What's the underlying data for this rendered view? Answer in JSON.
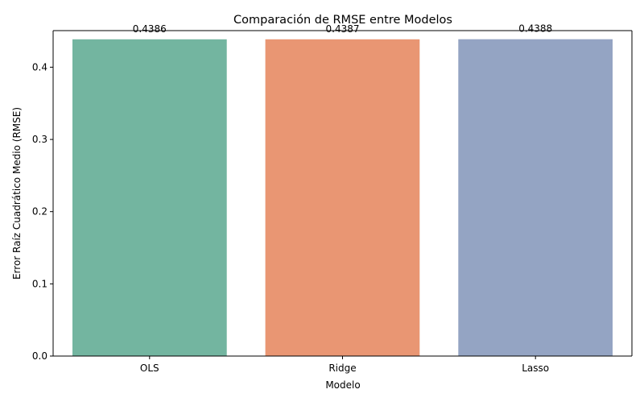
{
  "chart_data": {
    "type": "bar",
    "title": "Comparación de RMSE entre Modelos",
    "xlabel": "Modelo",
    "ylabel": "Error Raíz Cuadrático Medio (RMSE)",
    "categories": [
      "OLS",
      "Ridge",
      "Lasso"
    ],
    "values": [
      0.4386,
      0.4387,
      0.4388
    ],
    "data_labels": [
      "0.4386",
      "0.4387",
      "0.4388"
    ],
    "ylim": [
      0,
      0.4507
    ],
    "yticks": [
      0.0,
      0.1,
      0.2,
      0.3,
      0.4
    ],
    "ytick_labels": [
      "0.0",
      "0.1",
      "0.2",
      "0.3",
      "0.4"
    ],
    "colors": [
      "#73b5a0",
      "#e99673",
      "#94a4c3"
    ],
    "grid": false,
    "legend": false
  }
}
